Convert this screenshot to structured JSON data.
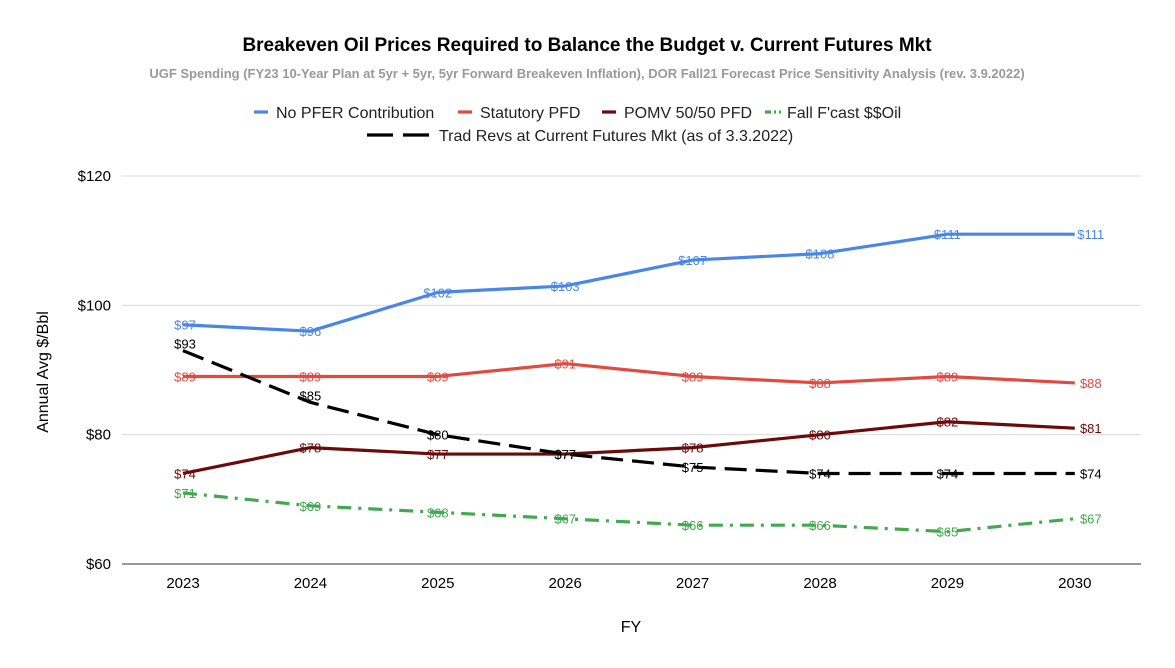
{
  "chart_data": {
    "type": "line",
    "title": "Breakeven Oil Prices Required to Balance the Budget v. Current Futures Mkt",
    "subtitle": "UGF Spending (FY23 10-Year Plan at 5yr + 5yr, 5yr Forward Breakeven Inflation), DOR Fall21 Forecast Price Sensitivity Analysis (rev. 3.9.2022)",
    "xlabel": "FY",
    "ylabel": "Annual Avg $/Bbl",
    "categories": [
      "2023",
      "2024",
      "2025",
      "2026",
      "2027",
      "2028",
      "2029",
      "2030"
    ],
    "ylim": [
      60,
      120
    ],
    "yticks": [
      60,
      80,
      100,
      120
    ],
    "ytick_labels": [
      "$60",
      "$80",
      "$100",
      "$120"
    ],
    "grid": true,
    "legend_position": "top",
    "series": [
      {
        "name": "No PFER Contribution",
        "color": "#4a86e8",
        "dash": "solid",
        "values": [
          97,
          96,
          102,
          103,
          107,
          108,
          111,
          111
        ],
        "labels": [
          "$97",
          "$96",
          "$102",
          "$103",
          "$107",
          "$108",
          "$111",
          "$111"
        ]
      },
      {
        "name": "Statutory PFD",
        "color": "#e04a3f",
        "dash": "solid",
        "values": [
          89,
          89,
          89,
          91,
          89,
          88,
          89,
          88
        ],
        "labels": [
          "$89",
          "$89",
          "$89",
          "$91",
          "$89",
          "$88",
          "$89",
          "$88"
        ]
      },
      {
        "name": "POMV 50/50 PFD",
        "color": "#6b0a0a",
        "dash": "solid",
        "values": [
          74,
          78,
          77,
          77,
          78,
          80,
          82,
          81
        ],
        "labels": [
          "$74",
          "$78",
          "$77",
          "$77",
          "$78",
          "$80",
          "$82",
          "$81"
        ]
      },
      {
        "name": "Fall F'cast $$Oil",
        "color": "#43a850",
        "dash": "dashdot",
        "values": [
          71,
          69,
          68,
          67,
          66,
          66,
          65,
          67
        ],
        "labels": [
          "$71",
          "$69",
          "$68",
          "$67",
          "$66",
          "$66",
          "$65",
          "$67"
        ]
      },
      {
        "name": "Trad Revs at Current Futures Mkt (as of 3.3.2022)",
        "color": "#000000",
        "dash": "longdash",
        "values": [
          93,
          85,
          80,
          77,
          75,
          74,
          74,
          74
        ],
        "labels": [
          "$93",
          "$85",
          "$80",
          "$77",
          "$75",
          "$74",
          "$74",
          "$74"
        ]
      }
    ]
  }
}
